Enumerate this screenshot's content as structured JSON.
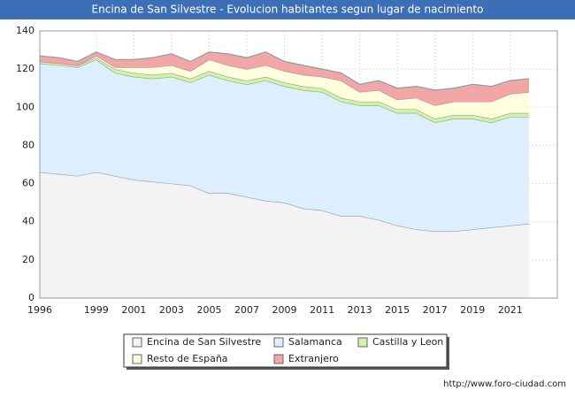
{
  "chart_data": {
    "type": "stacked_area",
    "title": "Encina de San Silvestre - Evolucion habitantes segun lugar de nacimiento",
    "footer": "http://www.foro-ciudad.com",
    "x": [
      1996,
      1997,
      1998,
      1999,
      2000,
      2001,
      2002,
      2003,
      2004,
      2005,
      2006,
      2007,
      2008,
      2009,
      2010,
      2011,
      2012,
      2013,
      2014,
      2015,
      2016,
      2017,
      2018,
      2019,
      2020,
      2021,
      2022
    ],
    "xlim": [
      1996,
      2023.5
    ],
    "xticks": [
      1996,
      1999,
      2001,
      2003,
      2005,
      2007,
      2009,
      2011,
      2013,
      2015,
      2017,
      2019,
      2021
    ],
    "ylim": [
      0,
      140
    ],
    "yticks": [
      0,
      20,
      40,
      60,
      80,
      100,
      120,
      140
    ],
    "grid": true,
    "series": [
      {
        "name": "Encina de San Silvestre",
        "color": "#f3f3f3",
        "values": [
          66,
          65,
          64,
          66,
          64,
          62,
          61,
          60,
          59,
          55,
          55,
          53,
          51,
          50,
          47,
          46,
          43,
          43,
          41,
          38,
          36,
          35,
          35,
          36,
          37,
          38,
          39
        ]
      },
      {
        "name": "Salamanca",
        "color": "#ddeeff",
        "values": [
          57,
          57,
          57,
          59,
          54,
          54,
          54,
          56,
          54,
          62,
          59,
          59,
          63,
          61,
          62,
          62,
          60,
          58,
          60,
          59,
          61,
          57,
          59,
          58,
          55,
          57,
          56
        ]
      },
      {
        "name": "Castilla y Leon",
        "color": "#ccf5a8",
        "values": [
          1,
          1,
          1,
          1,
          2,
          2,
          2,
          2,
          2,
          2,
          2,
          2,
          2,
          2,
          2,
          2,
          2,
          2,
          2,
          2,
          2,
          2,
          2,
          2,
          2,
          2,
          2
        ]
      },
      {
        "name": "Resto de España",
        "color": "#ffffdd",
        "values": [
          0,
          0,
          0,
          1,
          1,
          3,
          4,
          4,
          4,
          6,
          6,
          6,
          6,
          6,
          6,
          6,
          9,
          5,
          6,
          5,
          6,
          7,
          7,
          7,
          9,
          10,
          11
        ]
      },
      {
        "name": "Extranjero",
        "color": "#f2a6a6",
        "values": [
          3,
          3,
          2,
          2,
          4,
          4,
          5,
          6,
          5,
          4,
          6,
          6,
          7,
          5,
          5,
          4,
          4,
          4,
          5,
          6,
          6,
          8,
          7,
          9,
          8,
          7,
          7
        ]
      }
    ]
  }
}
